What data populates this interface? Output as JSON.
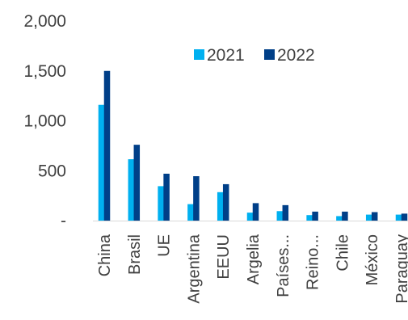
{
  "chart_data": {
    "type": "bar",
    "title": "",
    "xlabel": "",
    "ylabel": "",
    "categories": [
      "China",
      "Brasil",
      "UE",
      "Argentina",
      "EEUU",
      "Argelia",
      "Países...",
      "Reino...",
      "Chile",
      "México",
      "Paraguay"
    ],
    "series": [
      {
        "name": "2021",
        "color": "#00B0F0",
        "values": [
          1160,
          615,
          345,
          165,
          285,
          80,
          95,
          55,
          45,
          60,
          60
        ]
      },
      {
        "name": "2022",
        "color": "#003F88",
        "values": [
          1500,
          760,
          470,
          445,
          365,
          175,
          155,
          90,
          90,
          85,
          70
        ]
      }
    ],
    "ylim": [
      0,
      2000
    ],
    "y_ticks": [
      0,
      500,
      1000,
      1500,
      2000
    ],
    "y_tick_labels": [
      "-",
      "500",
      "1,000",
      "1,500",
      "2,000"
    ],
    "grid": false,
    "legend_position": "top-right"
  }
}
